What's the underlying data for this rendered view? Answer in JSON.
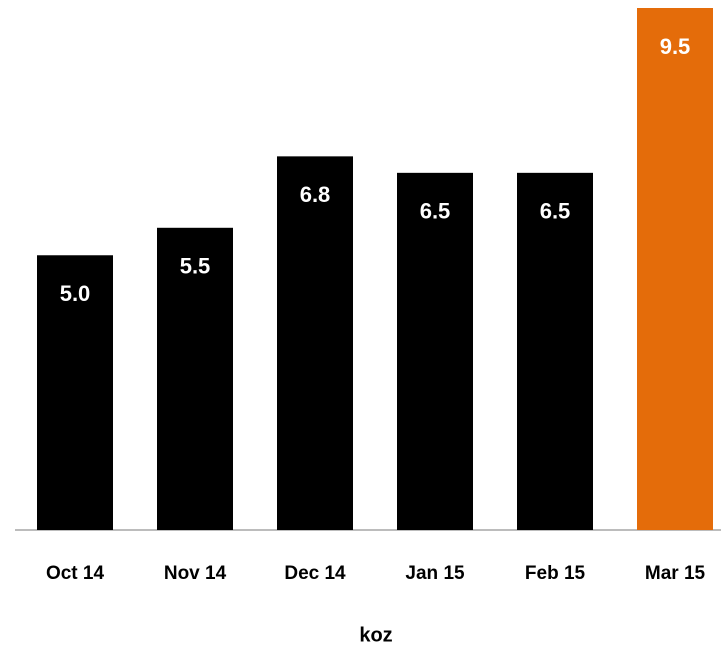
{
  "chart_data": {
    "type": "bar",
    "categories": [
      "Oct 14",
      "Nov 14",
      "Dec 14",
      "Jan 15",
      "Feb 15",
      "Mar 15"
    ],
    "values": [
      5.0,
      5.5,
      6.8,
      6.5,
      6.5,
      9.5
    ],
    "value_labels": [
      "5.0",
      "5.5",
      "6.8",
      "6.5",
      "6.5",
      "9.5"
    ],
    "colors": [
      "#000000",
      "#000000",
      "#000000",
      "#000000",
      "#000000",
      "#e46c0a"
    ],
    "x_label": "koz"
  }
}
